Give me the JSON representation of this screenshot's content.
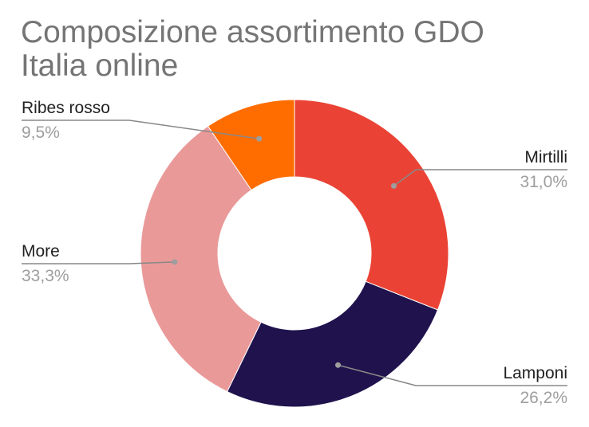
{
  "chart_data": {
    "type": "pie",
    "variant": "donut",
    "title": "Composizione assortimento GDO Italia online",
    "series": [
      {
        "name": "Mirtilli",
        "value": 31.0,
        "label": "31,0%",
        "color": "#ea4335",
        "side": "right"
      },
      {
        "name": "Lamponi",
        "value": 26.2,
        "label": "26,2%",
        "color": "#20124d",
        "side": "right"
      },
      {
        "name": "More",
        "value": 33.3,
        "label": "33,3%",
        "color": "#ea9999",
        "side": "left"
      },
      {
        "name": "Ribes rosso",
        "value": 9.5,
        "label": "9,5%",
        "color": "#ff6d01",
        "side": "left"
      }
    ],
    "legend": "none",
    "start_angle_deg": 0,
    "direction": "clockwise"
  }
}
